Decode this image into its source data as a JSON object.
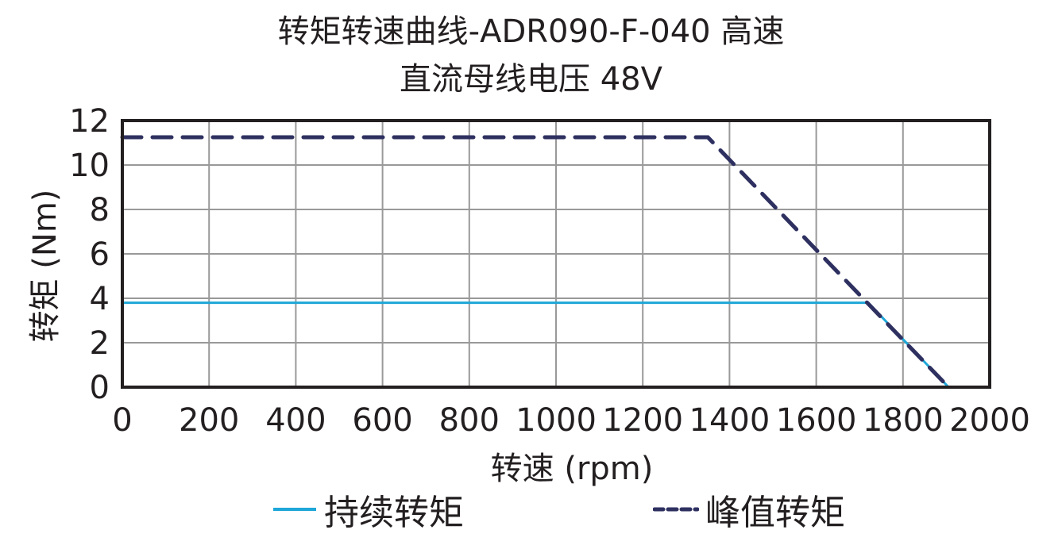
{
  "title": {
    "line1": "转矩转速曲线-ADR090-F-040 高速",
    "line2": "直流母线电压 48V"
  },
  "colors": {
    "continuous": "#1ea7d8",
    "peak": "#2e3060",
    "grid": "#999999",
    "frame": "#231f20",
    "text": "#231f20"
  },
  "legend": {
    "continuous_label": "持续转矩",
    "peak_label": "峰值转矩"
  },
  "chart_data": {
    "type": "line",
    "title": "转矩转速曲线-ADR090-F-040 高速 直流母线电压 48V",
    "xlabel": "转速 (rpm)",
    "ylabel": "转矩 (Nm)",
    "xlim": [
      0,
      2000
    ],
    "ylim": [
      0,
      12
    ],
    "xticks": [
      0,
      200,
      400,
      600,
      800,
      1000,
      1200,
      1400,
      1600,
      1800,
      2000
    ],
    "yticks": [
      0,
      2,
      4,
      6,
      8,
      10,
      12
    ],
    "grid": true,
    "legend_position": "bottom",
    "series": [
      {
        "name": "持续转矩",
        "style": "solid",
        "x": [
          0,
          1720,
          1905
        ],
        "y": [
          3.8,
          3.8,
          0
        ]
      },
      {
        "name": "峰值转矩",
        "style": "dashed",
        "x": [
          0,
          1350,
          1905
        ],
        "y": [
          11.25,
          11.25,
          0
        ]
      }
    ]
  }
}
